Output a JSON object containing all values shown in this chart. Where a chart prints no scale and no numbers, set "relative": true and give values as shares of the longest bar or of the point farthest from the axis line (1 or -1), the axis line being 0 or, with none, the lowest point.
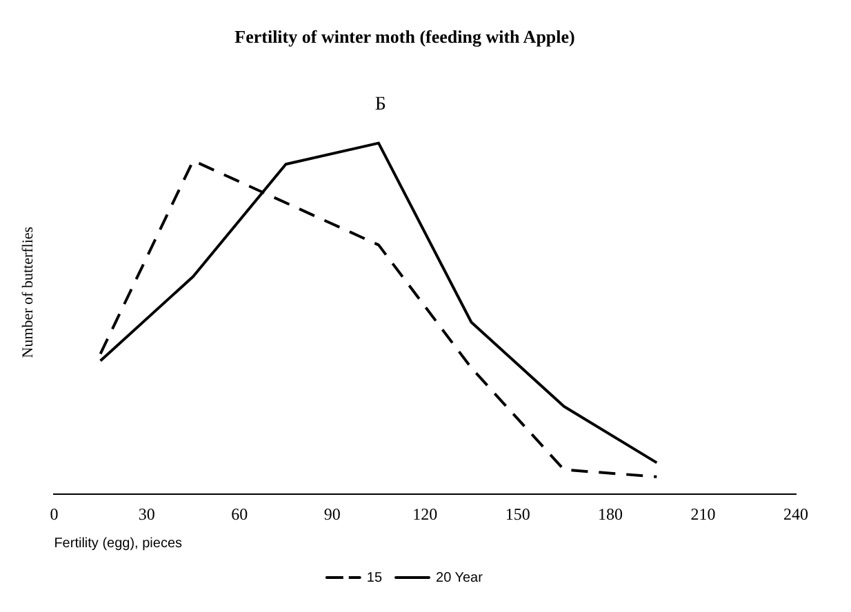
{
  "chart_data": {
    "type": "line",
    "title": "Fertility of winter moth (feeding with Apple)",
    "xlabel": "Fertility (egg), pieces",
    "ylabel": "Number of butterflies",
    "relative": true,
    "xlim": [
      0,
      240
    ],
    "xticks": [
      0,
      30,
      60,
      90,
      120,
      150,
      180,
      210,
      240
    ],
    "annotations": [
      "Б"
    ],
    "legend": "bottom",
    "grid": false,
    "marker": "none",
    "series": [
      {
        "name": "15",
        "color": "#000000",
        "line_style": "dashed",
        "x": [
          15,
          45,
          105,
          135,
          165,
          195
        ],
        "values": [
          0.4,
          0.95,
          0.71,
          0.36,
          0.07,
          0.05
        ]
      },
      {
        "name": "20 Year",
        "color": "#000000",
        "line_style": "solid",
        "x": [
          15,
          45,
          75,
          105,
          135,
          165,
          195
        ],
        "values": [
          0.38,
          0.62,
          0.94,
          1,
          0.49,
          0.25,
          0.09
        ]
      }
    ]
  }
}
